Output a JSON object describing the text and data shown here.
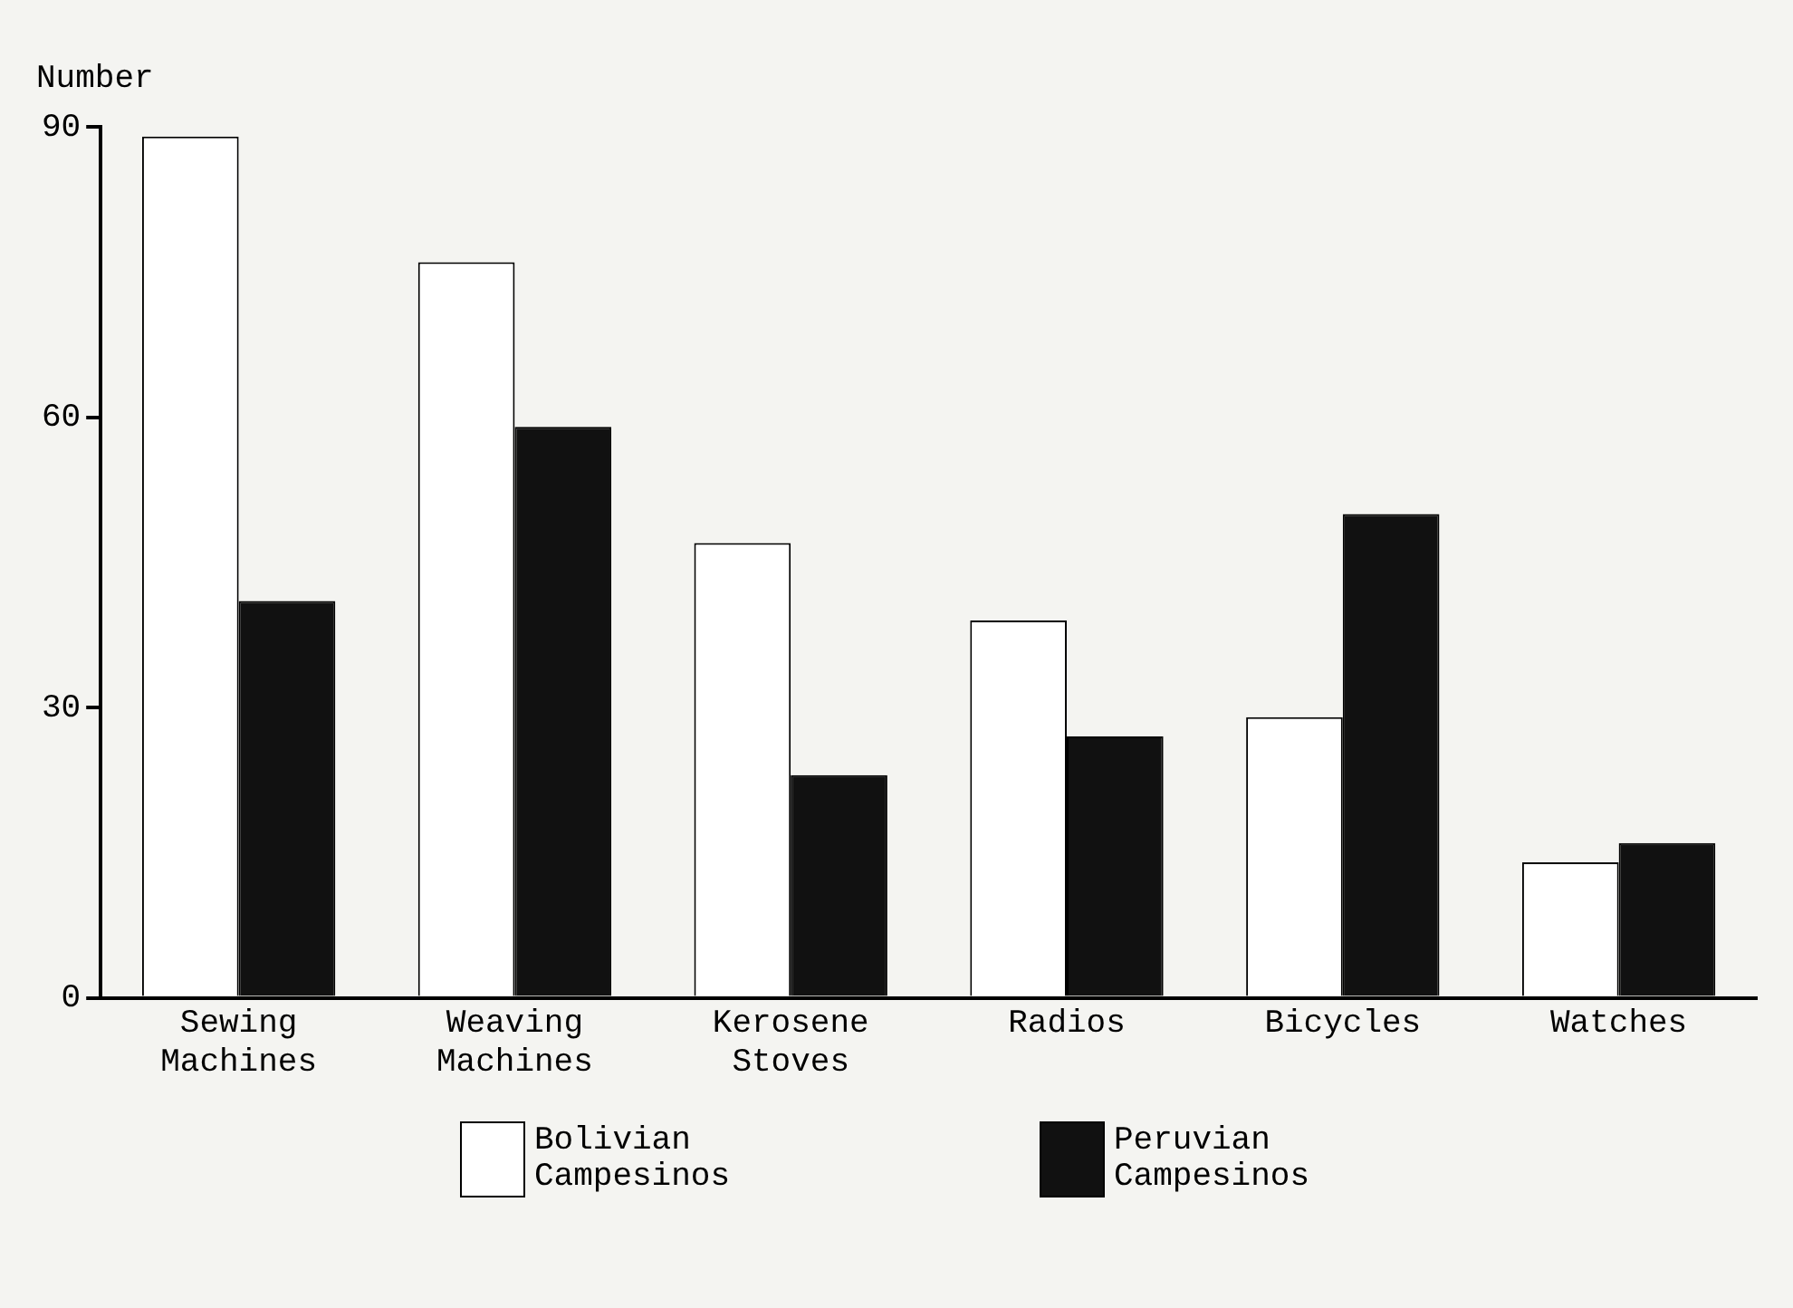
{
  "chart_data": {
    "type": "bar",
    "ylabel": "Number",
    "categories": [
      "Sewing Machines",
      "Weaving Machines",
      "Kerosene Stoves",
      "Radios",
      "Bicycles",
      "Watches"
    ],
    "series": [
      {
        "name": "Bolivian Campesinos",
        "color": "#ffffff",
        "values": [
          89,
          76,
          47,
          39,
          29,
          14
        ]
      },
      {
        "name": "Peruvian Campesinos",
        "color": "#111111",
        "values": [
          41,
          59,
          23,
          27,
          50,
          16
        ]
      }
    ],
    "ylim": [
      0,
      90
    ],
    "yticks": [
      0,
      30,
      60,
      90
    ],
    "grid": false,
    "legend": "bottom"
  }
}
